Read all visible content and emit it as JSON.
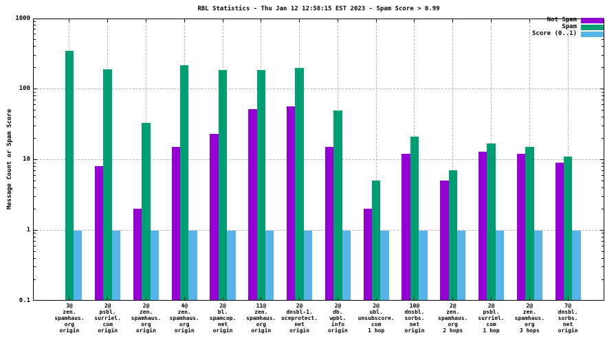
{
  "title": "RBL Statistics - Thu Jan 12 12:58:15 EST 2023 - Spam Score > 0.99",
  "y_axis_label": "Message Count or Spam Score",
  "colors": {
    "not_spam": "#9400d3",
    "spam": "#009e73",
    "score": "#56b4e9",
    "grid": "#b3b3b3",
    "axis": "#000000",
    "background": "#ffffff"
  },
  "legend": {
    "items": [
      {
        "label": "Not Spam",
        "color_key": "not_spam"
      },
      {
        "label": "Spam",
        "color_key": "spam"
      },
      {
        "label": "Score (0..1)",
        "color_key": "score"
      }
    ]
  },
  "chart_data": {
    "type": "bar",
    "y_scale": "log",
    "ylim": [
      0.1,
      1000
    ],
    "y_tick_labels": [
      "1000",
      "100",
      "10",
      "1",
      "0.1"
    ],
    "grid": true,
    "legend_position": "top-right-inside",
    "title": "RBL Statistics - Thu Jan 12 12:58:15 EST 2023 - Spam Score > 0.99",
    "ylabel": "Message Count or Spam Score",
    "grid_y_values": [
      1,
      10,
      100
    ],
    "categories": [
      [
        "3@",
        "zen.",
        "spamhaus.",
        "org",
        "origin"
      ],
      [
        "2@",
        "psbl.",
        "surriel.",
        "com",
        "origin"
      ],
      [
        "2@",
        "zen.",
        "spamhaus.",
        "org",
        "origin"
      ],
      [
        "4@",
        "zen.",
        "spamhaus.",
        "org",
        "origin"
      ],
      [
        "2@",
        "bl.",
        "spamcop.",
        "net",
        "origin"
      ],
      [
        "11@",
        "zen.",
        "spamhaus.",
        "org",
        "origin"
      ],
      [
        "2@",
        "dnsbl-1.",
        "uceprotect.",
        "net",
        "origin"
      ],
      [
        "2@",
        "db.",
        "wpbl.",
        "info",
        "origin"
      ],
      [
        "2@",
        "ubl.",
        "unsubscore.",
        "com",
        "1 hop"
      ],
      [
        "10@",
        "dnsbl.",
        "sorbs.",
        "net",
        "origin"
      ],
      [
        "2@",
        "zen.",
        "spamhaus.",
        "org",
        "2 hops"
      ],
      [
        "2@",
        "psbl.",
        "surriel.",
        "com",
        "1 hop"
      ],
      [
        "2@",
        "zen.",
        "spamhaus.",
        "org",
        "3 hops"
      ],
      [
        "7@",
        "dnsbl.",
        "sorbs.",
        "net",
        "origin"
      ]
    ],
    "series": [
      {
        "name": "Not Spam",
        "color_key": "not_spam",
        "values": [
          null,
          8,
          2,
          15,
          23,
          52,
          57,
          15,
          2,
          12,
          5,
          13,
          12,
          9
        ]
      },
      {
        "name": "Spam",
        "color_key": "spam",
        "values": [
          350,
          190,
          33,
          220,
          185,
          185,
          200,
          50,
          5,
          21,
          7,
          17,
          15,
          11
        ]
      },
      {
        "name": "Score (0..1)",
        "color_key": "score",
        "values": [
          0.99,
          0.99,
          0.99,
          0.99,
          0.99,
          0.99,
          0.99,
          0.99,
          0.99,
          0.99,
          0.99,
          0.99,
          0.99,
          0.99
        ]
      }
    ]
  }
}
